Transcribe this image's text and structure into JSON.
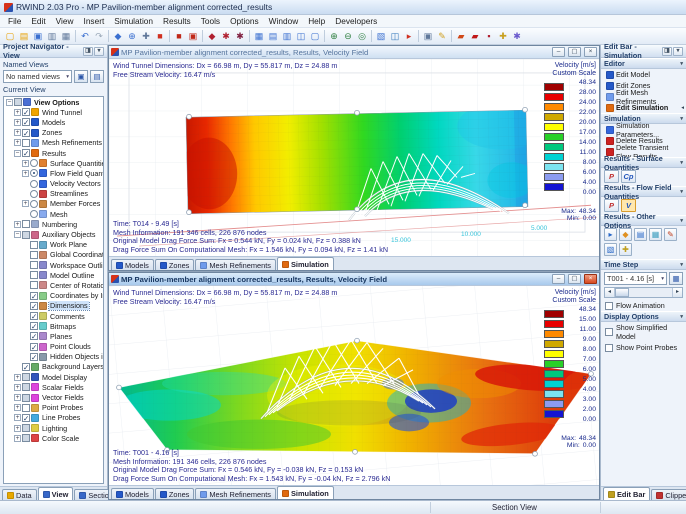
{
  "window": {
    "title": "RWIND 2.03 Pro - MP Pavilion-member alignment corrected_results",
    "menus": [
      "File",
      "Edit",
      "View",
      "Insert",
      "Simulation",
      "Results",
      "Tools",
      "Options",
      "Window",
      "Help",
      "Developers"
    ]
  },
  "toolbar": [
    {
      "name": "new-file-icon",
      "glyph": "▢",
      "color": "#e8a000"
    },
    {
      "name": "open-file-icon",
      "glyph": "▤",
      "color": "#e8a000"
    },
    {
      "name": "save-icon",
      "glyph": "▣",
      "color": "#3a6fd0"
    },
    {
      "name": "print-preview-icon",
      "glyph": "▥",
      "color": "#60789a"
    },
    {
      "name": "print-icon",
      "glyph": "▦",
      "color": "#60789a"
    },
    {
      "name": "sep"
    },
    {
      "name": "undo-icon",
      "glyph": "↶",
      "color": "#3a6fd0"
    },
    {
      "name": "redo-icon",
      "glyph": "↷",
      "color": "#9aa8b8"
    },
    {
      "name": "sep"
    },
    {
      "name": "isometric-view-icon",
      "glyph": "◆",
      "color": "#3a6fd0"
    },
    {
      "name": "fit-view-icon",
      "glyph": "⊕",
      "color": "#3a6fd0"
    },
    {
      "name": "move-view-icon",
      "glyph": "✚",
      "color": "#60789a"
    },
    {
      "name": "render-mode-icon",
      "glyph": "■",
      "color": "#d03020"
    },
    {
      "name": "sep"
    },
    {
      "name": "record-movie-icon",
      "glyph": "■",
      "color": "#c02818"
    },
    {
      "name": "movie-window-icon",
      "glyph": "▣",
      "color": "#c02818"
    },
    {
      "name": "sep"
    },
    {
      "name": "wind-profile-icon",
      "glyph": "◆",
      "color": "#b02030"
    },
    {
      "name": "simulation-parameters-icon",
      "glyph": "✱",
      "color": "#b02030"
    },
    {
      "name": "run-simulation-icon",
      "glyph": "✱",
      "color": "#802040"
    },
    {
      "name": "sep"
    },
    {
      "name": "mesh-icon",
      "glyph": "▦",
      "color": "#3a6fd0"
    },
    {
      "name": "results-table-icon",
      "glyph": "▤",
      "color": "#3a6fd0"
    },
    {
      "name": "graphs-icon",
      "glyph": "▥",
      "color": "#3a6fd0"
    },
    {
      "name": "tile-windows-icon",
      "glyph": "◫",
      "color": "#3a6fd0"
    },
    {
      "name": "full-screen-icon",
      "glyph": "▢",
      "color": "#3a6fd0"
    },
    {
      "name": "sep"
    },
    {
      "name": "zoom-in-icon",
      "glyph": "⊕",
      "color": "#308040"
    },
    {
      "name": "zoom-out-icon",
      "glyph": "⊖",
      "color": "#308040"
    },
    {
      "name": "zoom-window-icon",
      "glyph": "◎",
      "color": "#308040"
    },
    {
      "name": "sep"
    },
    {
      "name": "clipping-box-icon",
      "glyph": "▧",
      "color": "#3a6fd0"
    },
    {
      "name": "section-plane-icon",
      "glyph": "◫",
      "color": "#37b"
    },
    {
      "name": "flag-icon",
      "glyph": "▸",
      "color": "#d03020"
    },
    {
      "name": "sep"
    },
    {
      "name": "export-icon",
      "glyph": "▣",
      "color": "#60789a"
    },
    {
      "name": "annotate-icon",
      "glyph": "✎",
      "color": "#d0a020"
    },
    {
      "name": "sep"
    },
    {
      "name": "model-color-icon",
      "glyph": "▰",
      "color": "#d04818"
    },
    {
      "name": "surface-color-icon",
      "glyph": "▰",
      "color": "#c01818"
    },
    {
      "name": "probe-flag-icon",
      "glyph": "▪",
      "color": "#b02030"
    },
    {
      "name": "measure-icon",
      "glyph": "✚",
      "color": "#c8a020"
    },
    {
      "name": "settings-icon",
      "glyph": "✱",
      "color": "#6a5acd"
    }
  ],
  "navigator": {
    "title": "Project Navigator - View",
    "named_views_label": "Named Views",
    "named_views_value": "No named views",
    "current_view_label": "Current View",
    "tree": [
      {
        "label": "View Options",
        "lv": 0,
        "exp": "-",
        "ctrl": "chk",
        "state": "mix",
        "icon": "#4a6fd4",
        "bold": true
      },
      {
        "label": "Wind Tunnel",
        "lv": 1,
        "exp": "+",
        "ctrl": "chk",
        "state": "on",
        "icon": "#f0a400"
      },
      {
        "label": "Models",
        "lv": 1,
        "exp": "+",
        "ctrl": "chk",
        "state": "on",
        "icon": "#2458c8"
      },
      {
        "label": "Zones",
        "lv": 1,
        "exp": "+",
        "ctrl": "chk",
        "state": "on",
        "icon": "#2458c8"
      },
      {
        "label": "Mesh Refinements",
        "lv": 1,
        "exp": "+",
        "ctrl": "chk",
        "state": "off",
        "icon": "#6f9bec"
      },
      {
        "label": "Results",
        "lv": 1,
        "exp": "-",
        "ctrl": "chk",
        "state": "on",
        "icon": "#e06a10"
      },
      {
        "label": "Surface Quantities",
        "lv": 2,
        "exp": "+",
        "ctrl": "rad",
        "state": "off",
        "icon": "#e08030"
      },
      {
        "label": "Flow Field Quantities",
        "lv": 2,
        "exp": "+",
        "ctrl": "rad",
        "state": "on",
        "icon": "#3366dd"
      },
      {
        "label": "Velocity Vectors",
        "lv": 2,
        "exp": "",
        "ctrl": "rad",
        "state": "off",
        "icon": "#3366dd"
      },
      {
        "label": "Streamlines",
        "lv": 2,
        "exp": "",
        "ctrl": "rad",
        "state": "off",
        "icon": "#cc4444"
      },
      {
        "label": "Member Forces",
        "lv": 2,
        "exp": "+",
        "ctrl": "rad",
        "state": "off",
        "icon": "#cc8844"
      },
      {
        "label": "Mesh",
        "lv": 2,
        "exp": "",
        "ctrl": "rad",
        "state": "off",
        "icon": "#88aaee"
      },
      {
        "label": "Numbering",
        "lv": 1,
        "exp": "+",
        "ctrl": "chk",
        "state": "off",
        "icon": "#99aacc"
      },
      {
        "label": "Auxiliary Objects",
        "lv": 1,
        "exp": "-",
        "ctrl": "chk",
        "state": "mix",
        "icon": "#cc6688"
      },
      {
        "label": "Work Plane",
        "lv": 2,
        "exp": "",
        "ctrl": "chk",
        "state": "off",
        "icon": "#66aacc"
      },
      {
        "label": "Global Coordinate System (fixe",
        "lv": 2,
        "exp": "",
        "ctrl": "chk",
        "state": "off",
        "icon": "#cc8866"
      },
      {
        "label": "Workspace Outline",
        "lv": 2,
        "exp": "",
        "ctrl": "chk",
        "state": "off",
        "icon": "#8888cc"
      },
      {
        "label": "Model Outline",
        "lv": 2,
        "exp": "",
        "ctrl": "chk",
        "state": "off",
        "icon": "#8888cc"
      },
      {
        "label": "Center of Rotation",
        "lv": 2,
        "exp": "",
        "ctrl": "chk",
        "state": "off",
        "icon": "#cc8888"
      },
      {
        "label": "Coordinates by Input Cross",
        "lv": 2,
        "exp": "",
        "ctrl": "chk",
        "state": "on",
        "icon": "#88cc88"
      },
      {
        "label": "Dimensions",
        "lv": 2,
        "exp": "",
        "ctrl": "chk",
        "state": "on",
        "icon": "#cc8844",
        "sel": true
      },
      {
        "label": "Comments",
        "lv": 2,
        "exp": "",
        "ctrl": "chk",
        "state": "on",
        "icon": "#cccc66"
      },
      {
        "label": "Bitmaps",
        "lv": 2,
        "exp": "",
        "ctrl": "chk",
        "state": "on",
        "icon": "#66cccc"
      },
      {
        "label": "Planes",
        "lv": 2,
        "exp": "",
        "ctrl": "chk",
        "state": "on",
        "icon": "#aa88cc"
      },
      {
        "label": "Point Clouds",
        "lv": 2,
        "exp": "",
        "ctrl": "chk",
        "state": "on",
        "icon": "#cc66cc"
      },
      {
        "label": "Hidden Objects in the Backgro",
        "lv": 2,
        "exp": "",
        "ctrl": "chk",
        "state": "on",
        "icon": "#8899aa"
      },
      {
        "label": "Background Layers",
        "lv": 1,
        "exp": "",
        "ctrl": "chk",
        "state": "on",
        "icon": "#66aa66"
      },
      {
        "label": "Model Display",
        "lv": 1,
        "exp": "+",
        "ctrl": "chk",
        "state": "mix",
        "icon": "#3355bb"
      },
      {
        "label": "Scalar Fields",
        "lv": 1,
        "exp": "+",
        "ctrl": "chk",
        "state": "mix",
        "icon": "#dd44dd"
      },
      {
        "label": "Vector Fields",
        "lv": 1,
        "exp": "+",
        "ctrl": "chk",
        "state": "mix",
        "icon": "#dd44dd"
      },
      {
        "label": "Point Probes",
        "lv": 1,
        "exp": "+",
        "ctrl": "chk",
        "state": "off",
        "icon": "#ddaa44"
      },
      {
        "label": "Line Probes",
        "lv": 1,
        "exp": "+",
        "ctrl": "chk",
        "state": "on",
        "icon": "#44aadd"
      },
      {
        "label": "Lighting",
        "lv": 1,
        "exp": "+",
        "ctrl": "chk",
        "state": "mix",
        "icon": "#ddcc44"
      },
      {
        "label": "Color Scale",
        "lv": 1,
        "exp": "+",
        "ctrl": "chk",
        "state": "mix",
        "icon": "#dd4444"
      }
    ],
    "tabs": [
      {
        "label": "Data",
        "icon": "#e8a800",
        "active": false
      },
      {
        "label": "View",
        "icon": "#3868c8",
        "active": true
      },
      {
        "label": "Sections",
        "icon": "#3868c8",
        "active": false
      }
    ]
  },
  "legend_shared": {
    "title": "Velocity [m/s]",
    "subtitle": "Custom Scale",
    "max_label": "Max:",
    "min_label": "Min:",
    "max": "48.34",
    "min": "0.00",
    "colors": [
      "#a00000",
      "#e80000",
      "#ff8a00",
      "#cfa800",
      "#ffff00",
      "#28d028",
      "#00c87e",
      "#00d2d2",
      "#7ce4f0",
      "#8c9cf0",
      "#1414d2"
    ]
  },
  "viewports": [
    {
      "title": "MP Pavilion-member alignment corrected_results, Results, Velocity Field",
      "info": [
        "Wind Tunnel Dimensions: Dx = 66.98 m, Dy = 55.817 m, Dz = 24.88 m",
        "Free Stream Velocity: 16.47 m/s"
      ],
      "legend_values": [
        "48.34",
        "28.00",
        "24.00",
        "22.00",
        "20.00",
        "17.00",
        "14.00",
        "11.00",
        "8.00",
        "6.00",
        "4.00",
        "0.00"
      ],
      "footer": [
        "Time: T014 - 9.49 [s]",
        "Mesh Information: 191 346 cells, 226 876 nodes",
        "Original Model Drag Force Sum: Fx = 0.544 kN, Fy = 0.024 kN, Fz = 0.388 kN",
        "Drag Force Sum On Computational Mesh: Fx = 1.546 kN, Fy = 0.094 kN, Fz = 1.41 kN"
      ],
      "axis_labels": [
        "15.000",
        "10.000",
        "5.000"
      ]
    },
    {
      "title": "MP Pavilion-member alignment corrected_results, Results, Velocity Field",
      "info": [
        "Wind Tunnel Dimensions: Dx = 66.98 m, Dy = 55.817 m, Dz = 24.88 m",
        "Free Stream Velocity: 16.47 m/s"
      ],
      "legend_values": [
        "48.34",
        "15.00",
        "11.00",
        "9.00",
        "8.00",
        "7.00",
        "6.00",
        "5.00",
        "4.00",
        "3.00",
        "2.00",
        "0.00"
      ],
      "footer": [
        "Time: T001 - 4.16 [s]",
        "Mesh Information: 191 346 cells, 226 876 nodes",
        "Original Model Drag Force Sum: Fx = 0.546 kN, Fy = -0.038 kN, Fz = 0.153 kN",
        "Drag Force Sum On Computational Mesh: Fx = 1.543 kN, Fy = -0.04 kN, Fz = 2.796 kN"
      ],
      "axis_labels": []
    }
  ],
  "vp_tabs": [
    {
      "label": "Models",
      "icon": "#2458c8",
      "active": false
    },
    {
      "label": "Zones",
      "icon": "#2458c8",
      "active": false
    },
    {
      "label": "Mesh Refinements",
      "icon": "#6f9bec",
      "active": false
    },
    {
      "label": "Simulation",
      "icon": "#e06a10",
      "active": true
    }
  ],
  "editbar": {
    "title": "Edit Bar - Simulation",
    "editor_label": "Editor",
    "editor_items": [
      {
        "label": "Edit Model",
        "icon": "#2458c8",
        "active": false
      },
      {
        "label": "Edit Zones",
        "icon": "#2458c8",
        "active": false
      },
      {
        "label": "Edit Mesh Refinements",
        "icon": "#6f9bec",
        "active": false
      },
      {
        "label": "Edit Simulation",
        "icon": "#e06a10",
        "active": true
      }
    ],
    "simulation_label": "Simulation",
    "simulation_items": [
      {
        "label": "Simulation Parameters...",
        "icon": "#3366dd"
      },
      {
        "label": "Delete Results",
        "icon": "#cc2222"
      },
      {
        "label": "Delete Transient Flow Results...",
        "icon": "#cc2222"
      }
    ],
    "surface_label": "Results - Surface Quantities",
    "surface_buttons": [
      {
        "label": "P",
        "color": "#c03030",
        "pressed": false
      },
      {
        "label": "Cp",
        "color": "#2255bb",
        "pressed": false
      }
    ],
    "flow_label": "Results - Flow Field Quantities",
    "flow_buttons": [
      {
        "label": "P",
        "color": "#c03030",
        "pressed": false
      },
      {
        "label": "V",
        "color": "#2255bb",
        "pressed": true
      }
    ],
    "other_label": "Results - Other Options",
    "other_buttons": [
      {
        "name": "stream-traces-button",
        "glyph": "▸",
        "color": "#2868c8"
      },
      {
        "name": "iso-surfaces-button",
        "glyph": "◆",
        "color": "#e09020"
      },
      {
        "name": "slicer-plane-button",
        "glyph": "▤",
        "color": "#2868c8"
      },
      {
        "name": "vector-plot-button",
        "glyph": "▦",
        "color": "#40a0c0"
      },
      {
        "name": "edit-color-scale-button",
        "glyph": "✎",
        "color": "#c04020"
      },
      {
        "name": "mesh-display-button",
        "glyph": "▧",
        "color": "#2868c8"
      },
      {
        "name": "probe-values-button",
        "glyph": "✚",
        "color": "#c0a020"
      }
    ],
    "time_label": "Time Step",
    "time_value": "T001 - 4.16 [s]",
    "flow_animation_label": "Flow Animation",
    "display_label": "Display Options",
    "display_items": [
      "Show Simplified Model",
      "Show Point Probes"
    ],
    "tabs": [
      {
        "label": "Edit Bar",
        "icon": "#c0a020",
        "active": true
      },
      {
        "label": "Clipper",
        "icon": "#c03030",
        "active": false
      }
    ]
  },
  "statusbar": {
    "text": "Section View"
  },
  "icons": {
    "minimize": "–",
    "maximize": "▢",
    "close": "×",
    "chevron": "▾",
    "pin": "◨",
    "combo_arrow": "▾",
    "left": "◂",
    "right": "▸",
    "active_mark": "◂"
  }
}
